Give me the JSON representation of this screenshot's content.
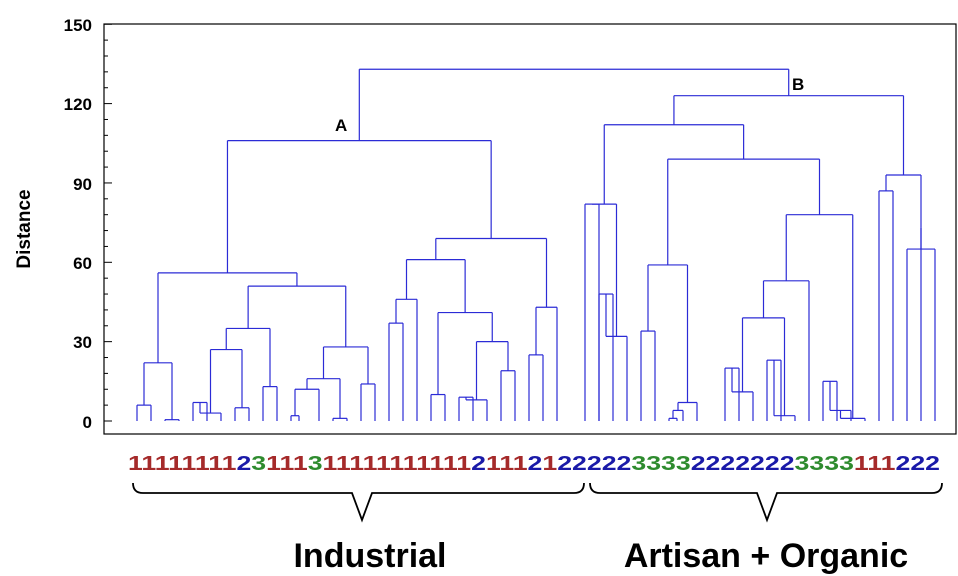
{
  "chart_data": {
    "type": "dendrogram",
    "ylabel": "Distance",
    "ylim": [
      0,
      150
    ],
    "yticks": [
      "0",
      "30",
      "60",
      "90",
      "120",
      "150"
    ],
    "leaf_labels": "111111112311131111111111121112122222333322222223333111222",
    "leaf_colors": {
      "1": "#a52a2a",
      "2": "#1a1aa8",
      "3": "#2e8b2e"
    },
    "link_color": "#2b2bd6",
    "node_labels": [
      {
        "text": "A",
        "height": 106
      },
      {
        "text": "B",
        "height": 133
      }
    ],
    "leaf_heights": [
      6,
      0.5,
      22,
      7,
      3,
      5,
      13,
      2,
      12,
      1,
      16,
      14,
      37,
      46,
      10,
      9,
      8,
      19,
      25,
      18,
      43,
      82,
      48,
      32,
      34,
      1,
      4,
      7,
      20,
      11,
      23,
      2,
      15,
      4,
      1,
      87,
      73,
      65
    ],
    "merge_heights": [
      27,
      35,
      28,
      51,
      56,
      61,
      30,
      41,
      69,
      106,
      59,
      53,
      39,
      78,
      99,
      112,
      93,
      123,
      133
    ],
    "groups": [
      {
        "label": "Industrial"
      },
      {
        "label": "Artisan + Organic"
      }
    ]
  }
}
